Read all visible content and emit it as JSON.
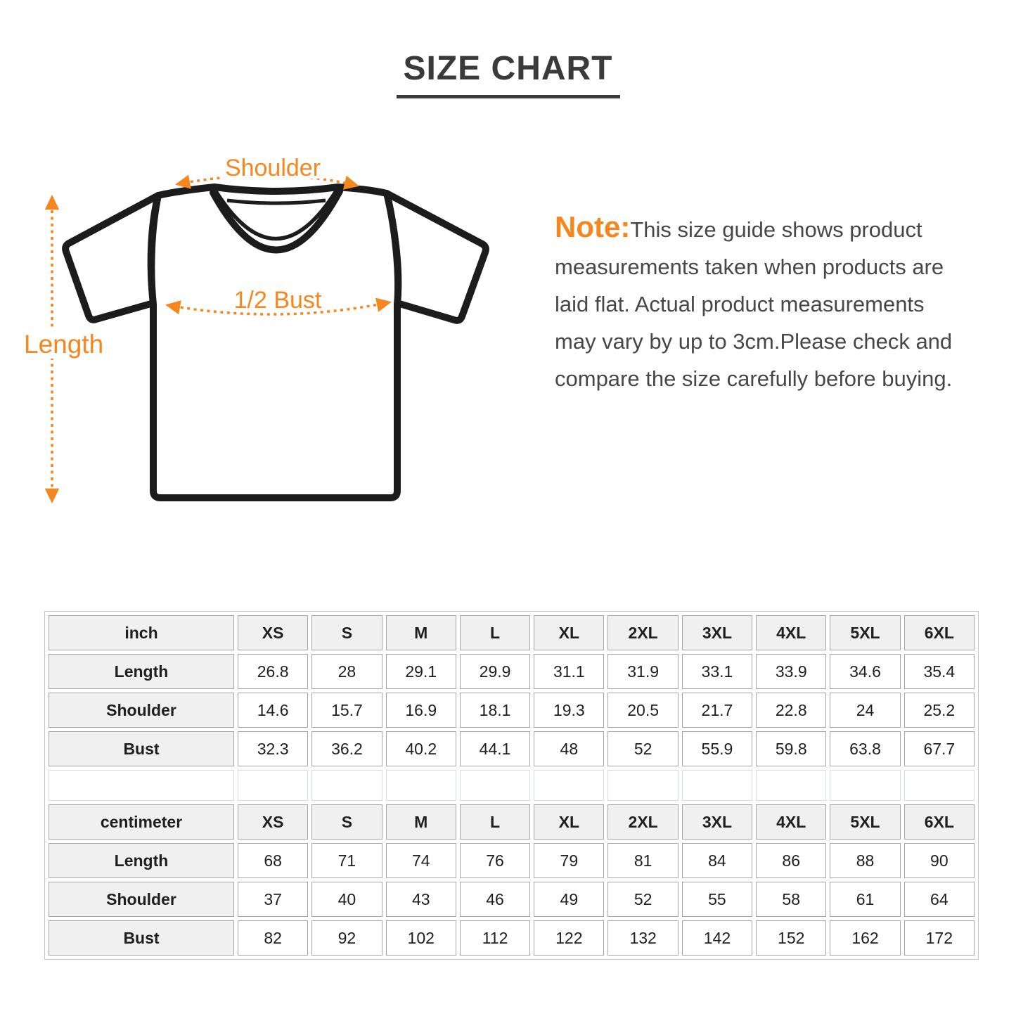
{
  "title": "SIZE CHART",
  "accent_color": "#F6861E",
  "diagram": {
    "shoulder_label": "Shoulder",
    "bust_label": "1/2 Bust",
    "length_label": "Length"
  },
  "note": {
    "label": "Note:",
    "lines": [
      "This size guide shows product",
      "measurements taken when products are",
      "laid flat. Actual product measurements",
      "may vary by up to 3cm.Please check and",
      "compare the size carefully before buying."
    ]
  },
  "size_tables": [
    {
      "unit": "inch",
      "sizes": [
        "XS",
        "S",
        "M",
        "L",
        "XL",
        "2XL",
        "3XL",
        "4XL",
        "5XL",
        "6XL"
      ],
      "rows": [
        {
          "label": "Length",
          "values": [
            "26.8",
            "28",
            "29.1",
            "29.9",
            "31.1",
            "31.9",
            "33.1",
            "33.9",
            "34.6",
            "35.4"
          ]
        },
        {
          "label": "Shoulder",
          "values": [
            "14.6",
            "15.7",
            "16.9",
            "18.1",
            "19.3",
            "20.5",
            "21.7",
            "22.8",
            "24",
            "25.2"
          ]
        },
        {
          "label": "Bust",
          "values": [
            "32.3",
            "36.2",
            "40.2",
            "44.1",
            "48",
            "52",
            "55.9",
            "59.8",
            "63.8",
            "67.7"
          ]
        }
      ]
    },
    {
      "unit": "centimeter",
      "sizes": [
        "XS",
        "S",
        "M",
        "L",
        "XL",
        "2XL",
        "3XL",
        "4XL",
        "5XL",
        "6XL"
      ],
      "rows": [
        {
          "label": "Length",
          "values": [
            "68",
            "71",
            "74",
            "76",
            "79",
            "81",
            "84",
            "86",
            "88",
            "90"
          ]
        },
        {
          "label": "Shoulder",
          "values": [
            "37",
            "40",
            "43",
            "46",
            "49",
            "52",
            "55",
            "58",
            "61",
            "64"
          ]
        },
        {
          "label": "Bust",
          "values": [
            "82",
            "92",
            "102",
            "112",
            "122",
            "132",
            "142",
            "152",
            "162",
            "172"
          ]
        }
      ]
    }
  ]
}
